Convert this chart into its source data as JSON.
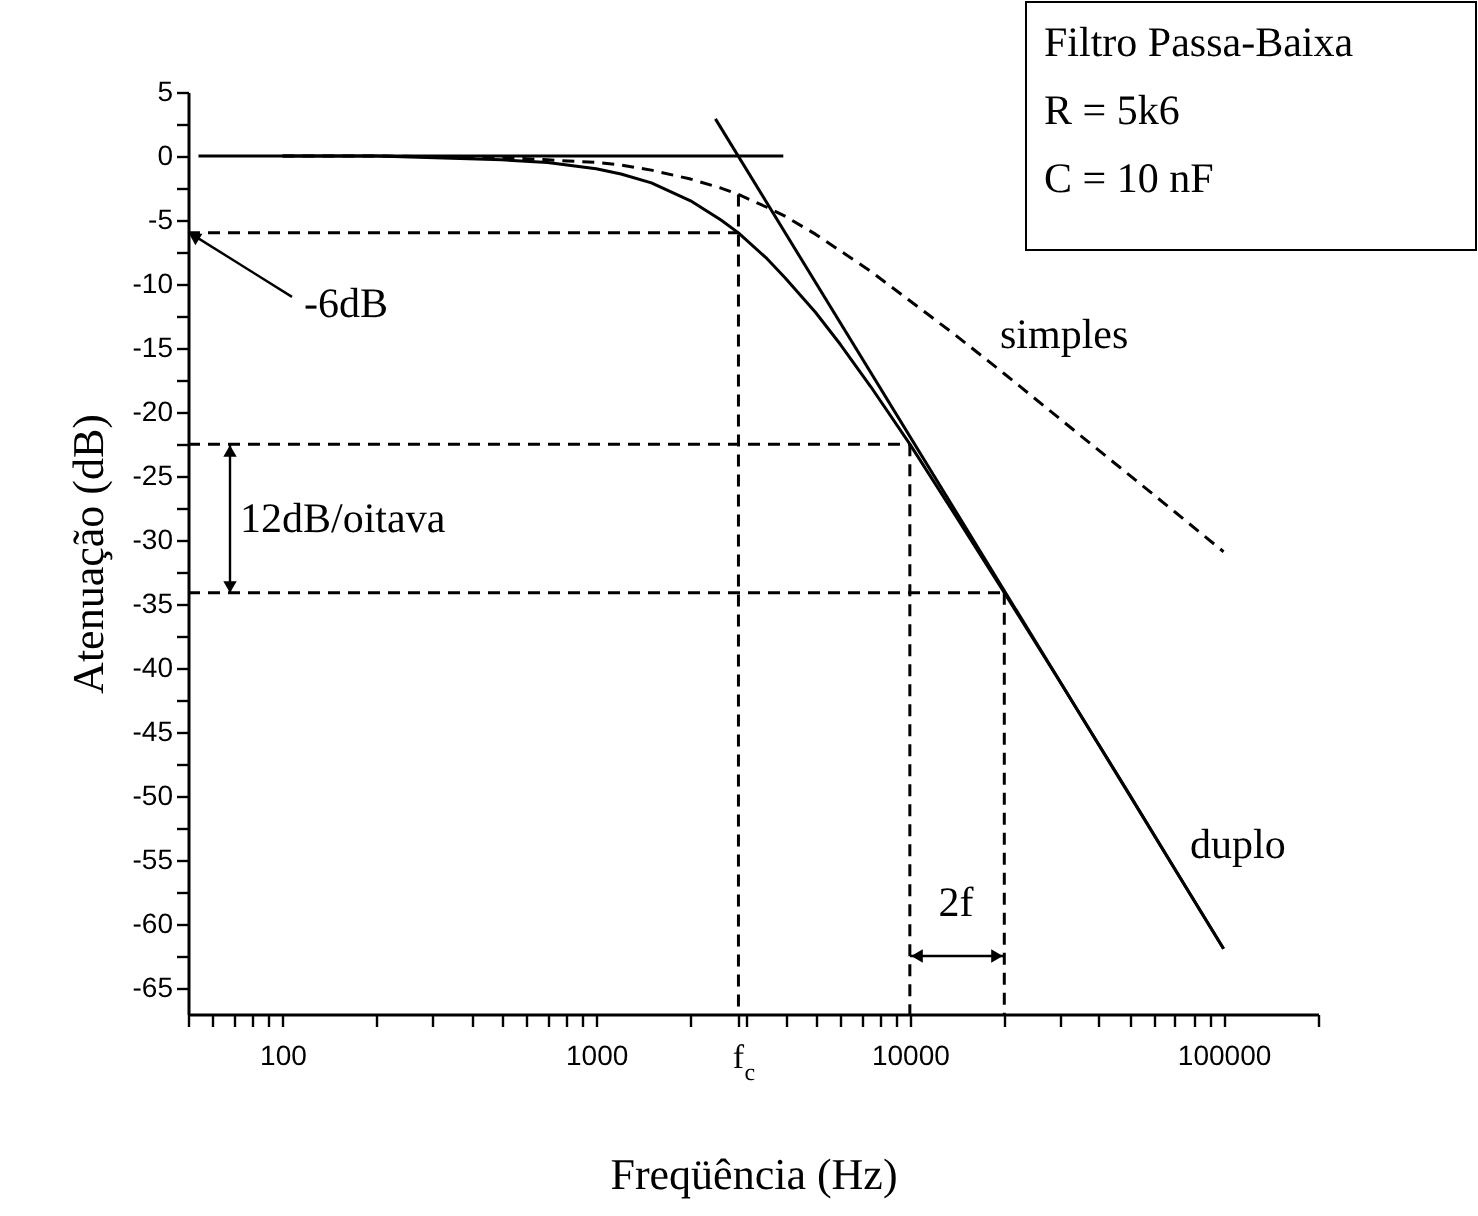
{
  "chart_data": {
    "type": "line",
    "xlabel": "Freqüência (Hz)",
    "ylabel": "Atenuação (dB)",
    "xlim": [
      50,
      200000
    ],
    "ylim": [
      -67,
      5
    ],
    "log": "x",
    "grid": false,
    "xticks": [
      {
        "value": 50,
        "label": null
      },
      {
        "value": 60,
        "label": null
      },
      {
        "value": 70,
        "label": null
      },
      {
        "value": 80,
        "label": null
      },
      {
        "value": 90,
        "label": null
      },
      100,
      {
        "value": 200,
        "label": null
      },
      {
        "value": 300,
        "label": null
      },
      {
        "value": 400,
        "label": null
      },
      {
        "value": 500,
        "label": null
      },
      {
        "value": 600,
        "label": null
      },
      {
        "value": 700,
        "label": null
      },
      {
        "value": 800,
        "label": null
      },
      {
        "value": 900,
        "label": null
      },
      1000,
      {
        "value": 2000,
        "label": null
      },
      {
        "value": 2842,
        "label": "f$_{c}$"
      },
      {
        "value": 3000,
        "label": null
      },
      {
        "value": 4000,
        "label": null
      },
      {
        "value": 5000,
        "label": null
      },
      {
        "value": 6000,
        "label": null
      },
      {
        "value": 7000,
        "label": null
      },
      {
        "value": 8000,
        "label": null
      },
      {
        "value": 9000,
        "label": null
      },
      10000,
      {
        "value": 20000,
        "label": null
      },
      {
        "value": 30000,
        "label": null
      },
      {
        "value": 40000,
        "label": null
      },
      {
        "value": 50000,
        "label": null
      },
      {
        "value": 60000,
        "label": null
      },
      {
        "value": 70000,
        "label": null
      },
      {
        "value": 80000,
        "label": null
      },
      {
        "value": 90000,
        "label": null
      },
      100000,
      {
        "value": 200000,
        "label": null
      }
    ],
    "yticks": [
      5,
      {
        "value": 2.5,
        "label": null
      },
      0,
      {
        "value": -2.5,
        "label": null
      },
      -5,
      {
        "value": -7.5,
        "label": null
      },
      -10,
      {
        "value": -12.5,
        "label": null
      },
      -15,
      {
        "value": -17.5,
        "label": null
      },
      -20,
      {
        "value": -22.5,
        "label": null
      },
      -25,
      {
        "value": -27.5,
        "label": null
      },
      -30,
      {
        "value": -32.5,
        "label": null
      },
      -35,
      {
        "value": -37.5,
        "label": null
      },
      -40,
      {
        "value": -42.5,
        "label": null
      },
      -45,
      {
        "value": -47.5,
        "label": null
      },
      -50,
      {
        "value": -52.5,
        "label": null
      },
      -55,
      {
        "value": -57.5,
        "label": null
      },
      -60,
      {
        "value": -62.5,
        "label": null
      },
      -65
    ],
    "series": [
      {
        "color": "#000000",
        "line_style": "dashed",
        "x": [
          100,
          200,
          500,
          700,
          1000,
          1200,
          1500,
          2000,
          2500,
          2842,
          3500,
          4000,
          5000,
          6000,
          7500,
          10000,
          14000,
          20000,
          30000,
          50000,
          70000,
          100000
        ],
        "values": [
          0.0,
          0.0,
          -0.1,
          -0.3,
          -0.5,
          -0.7,
          -1.1,
          -1.8,
          -2.5,
          -3.0,
          -4.0,
          -4.7,
          -6.1,
          -7.4,
          -9.0,
          -11.3,
          -14.0,
          -17.0,
          -20.5,
          -24.9,
          -27.8,
          -30.9
        ]
      },
      {
        "color": "#000000",
        "line_style": "solid",
        "x": [
          100,
          200,
          500,
          700,
          1000,
          1200,
          1500,
          2000,
          2500,
          2842,
          3500,
          4000,
          5000,
          6000,
          7500,
          10000,
          14000,
          20000,
          30000,
          50000,
          70000,
          100000
        ],
        "values": [
          0.0,
          0.0,
          -0.3,
          -0.5,
          -1.0,
          -1.4,
          -2.1,
          -3.5,
          -5.0,
          -6.0,
          -8.0,
          -9.5,
          -12.2,
          -14.7,
          -18.0,
          -22.5,
          -28.1,
          -34.1,
          -41.0,
          -49.8,
          -55.7,
          -61.9
        ]
      },
      {
        "color": "#000000",
        "line_style": "solid",
        "x": [
          54,
          3950
        ],
        "values": [
          0,
          0
        ]
      },
      {
        "color": "#000000",
        "line_style": "solid",
        "x": [
          2400,
          100000
        ],
        "values": [
          2.9,
          -61.9
        ]
      },
      {
        "color": "#000000",
        "line_style": "dashed",
        "x": [
          50,
          2842
        ],
        "values": [
          -6.0,
          -6.0
        ]
      },
      {
        "color": "#000000",
        "line_style": "dashed",
        "x": [
          2842,
          2842
        ],
        "values": [
          -3.0,
          -67
        ]
      },
      {
        "color": "#000000",
        "line_style": "dashed",
        "x": [
          50,
          10000
        ],
        "values": [
          -22.5,
          -22.5
        ]
      },
      {
        "color": "#000000",
        "line_style": "dashed",
        "x": [
          10000,
          10000
        ],
        "values": [
          -22.5,
          -67
        ]
      },
      {
        "color": "#000000",
        "line_style": "dashed",
        "x": [
          50,
          20000
        ],
        "values": [
          -34.1,
          -34.1
        ]
      },
      {
        "color": "#000000",
        "line_style": "dashed",
        "x": [
          20000,
          20000
        ],
        "values": [
          -34.1,
          -67
        ]
      }
    ],
    "annotations": [
      "Filtro Passa-Baixa",
      "R = 5k6",
      "C = 10 nF",
      "simples",
      "duplo",
      "12dB/oitava",
      "2f",
      {
        "text": "-6dB",
        "x": 50,
        "y": -6
      }
    ]
  }
}
